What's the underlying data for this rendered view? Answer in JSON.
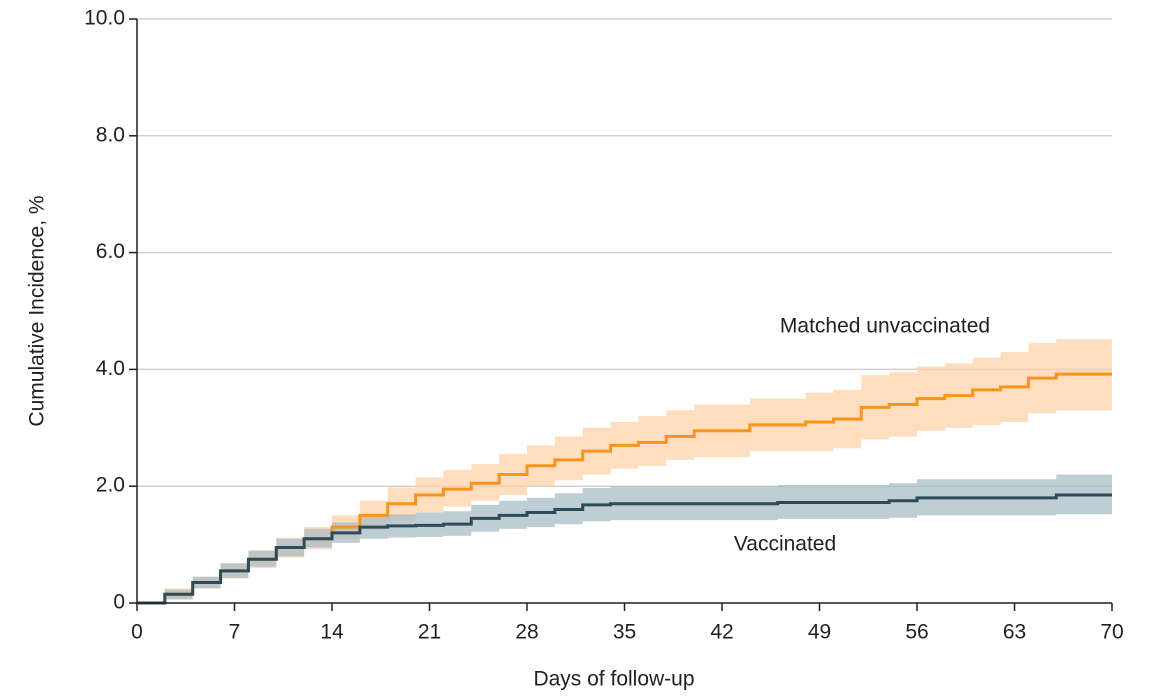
{
  "chart_data": {
    "type": "step",
    "x_label": "Days of follow-up",
    "y_label": "Cumulative Incidence, %",
    "xlim": [
      0,
      70
    ],
    "xticks": [
      0,
      7,
      14,
      21,
      28,
      35,
      42,
      49,
      56,
      63,
      70
    ],
    "ylim": [
      0,
      10
    ],
    "yticks": [
      0,
      {
        "value": 2,
        "label": "2.0"
      },
      {
        "value": 4,
        "label": "4.0"
      },
      {
        "value": 6,
        "label": "6.0"
      },
      {
        "value": 8,
        "label": "8.0"
      },
      {
        "value": 10,
        "label": "10.0"
      }
    ],
    "grid": true,
    "x": [
      0,
      2,
      4,
      6,
      8,
      10,
      12,
      14,
      16,
      18,
      20,
      22,
      24,
      26,
      28,
      30,
      32,
      34,
      36,
      38,
      40,
      42,
      44,
      46,
      48,
      50,
      52,
      54,
      56,
      58,
      60,
      62,
      64,
      66,
      68,
      70
    ],
    "series": [
      {
        "name": "Matched unvaccinated",
        "color": "#f7941d",
        "band_color": "#fdd3a8",
        "values": [
          0,
          0.15,
          0.35,
          0.55,
          0.75,
          0.95,
          1.1,
          1.3,
          1.5,
          1.7,
          1.85,
          1.95,
          2.05,
          2.2,
          2.35,
          2.45,
          2.6,
          2.7,
          2.75,
          2.85,
          2.95,
          2.95,
          3.05,
          3.05,
          3.1,
          3.15,
          3.35,
          3.4,
          3.5,
          3.55,
          3.65,
          3.7,
          3.85,
          3.92,
          3.92,
          3.92
        ],
        "lower": [
          0,
          0.05,
          0.25,
          0.42,
          0.6,
          0.78,
          0.92,
          1.1,
          1.25,
          1.4,
          1.55,
          1.65,
          1.75,
          1.85,
          2.0,
          2.1,
          2.2,
          2.3,
          2.35,
          2.45,
          2.5,
          2.5,
          2.6,
          2.6,
          2.6,
          2.65,
          2.8,
          2.85,
          2.95,
          3.0,
          3.05,
          3.1,
          3.25,
          3.3,
          3.3,
          3.3
        ],
        "upper": [
          0,
          0.25,
          0.45,
          0.68,
          0.9,
          1.12,
          1.3,
          1.5,
          1.75,
          1.98,
          2.15,
          2.28,
          2.38,
          2.55,
          2.7,
          2.85,
          3.0,
          3.1,
          3.2,
          3.3,
          3.4,
          3.4,
          3.5,
          3.5,
          3.6,
          3.65,
          3.9,
          3.95,
          4.05,
          4.1,
          4.2,
          4.3,
          4.45,
          4.52,
          4.52,
          4.52
        ]
      },
      {
        "name": "Vaccinated",
        "color": "#2d4b59",
        "band_color": "#a9bcc7",
        "values": [
          0,
          0.15,
          0.35,
          0.55,
          0.75,
          0.95,
          1.1,
          1.2,
          1.3,
          1.32,
          1.33,
          1.35,
          1.45,
          1.5,
          1.55,
          1.6,
          1.68,
          1.7,
          1.7,
          1.7,
          1.7,
          1.7,
          1.7,
          1.72,
          1.72,
          1.72,
          1.72,
          1.75,
          1.8,
          1.8,
          1.8,
          1.8,
          1.8,
          1.85,
          1.85,
          1.85
        ],
        "lower": [
          0,
          0.07,
          0.25,
          0.43,
          0.62,
          0.8,
          0.95,
          1.03,
          1.1,
          1.12,
          1.13,
          1.15,
          1.22,
          1.27,
          1.3,
          1.35,
          1.4,
          1.42,
          1.42,
          1.42,
          1.42,
          1.42,
          1.42,
          1.44,
          1.44,
          1.44,
          1.44,
          1.46,
          1.5,
          1.5,
          1.5,
          1.5,
          1.5,
          1.52,
          1.52,
          1.52
        ],
        "upper": [
          0,
          0.23,
          0.45,
          0.68,
          0.9,
          1.1,
          1.27,
          1.38,
          1.5,
          1.52,
          1.55,
          1.57,
          1.68,
          1.75,
          1.8,
          1.88,
          1.97,
          2.0,
          2.0,
          2.0,
          2.0,
          2.0,
          2.0,
          2.02,
          2.02,
          2.02,
          2.02,
          2.05,
          2.12,
          2.12,
          2.12,
          2.12,
          2.12,
          2.2,
          2.2,
          2.2
        ]
      }
    ]
  }
}
